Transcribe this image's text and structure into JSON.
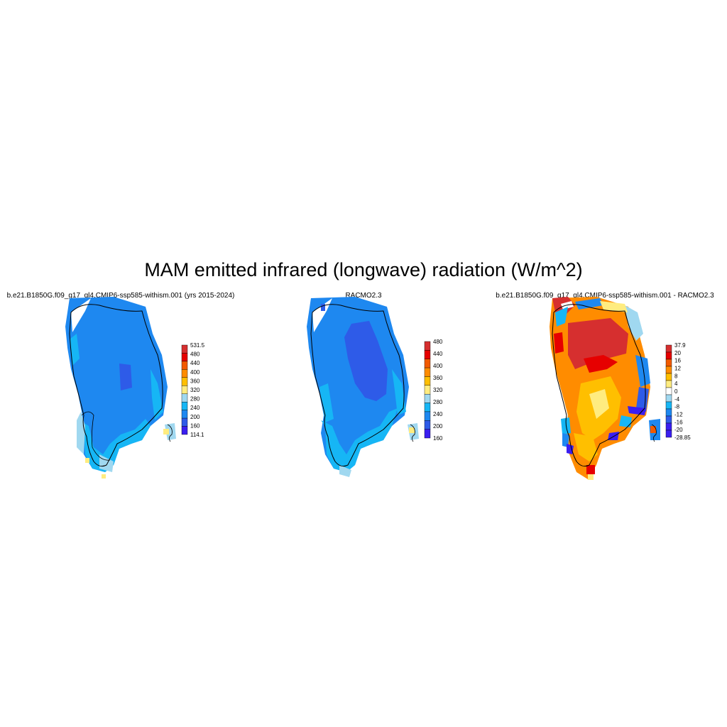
{
  "figure": {
    "title": "MAM emitted infrared (longwave) radiation (W/m^2)"
  },
  "panels": [
    {
      "title": "b.e21.B1850G.f09_g17_gl4.CMIP6-ssp585-withism.001 (yrs 2015-2024)",
      "colorbar": {
        "labels": [
          "531.5",
          "480",
          "440",
          "400",
          "360",
          "320",
          "280",
          "240",
          "200",
          "160",
          "114.1"
        ],
        "colors": [
          "#d62f2f",
          "#e60000",
          "#f25a00",
          "#ff8c00",
          "#ffbf00",
          "#ffec80",
          "#a0d8f0",
          "#16b6f5",
          "#1e88f0",
          "#2e5be8",
          "#3a1ef0"
        ]
      }
    },
    {
      "title": "RACMO2.3",
      "colorbar": {
        "labels": [
          "480",
          "440",
          "400",
          "360",
          "320",
          "280",
          "240",
          "200",
          "160"
        ],
        "colors": [
          "#d62f2f",
          "#e60000",
          "#f25a00",
          "#ff8c00",
          "#ffbf00",
          "#ffec80",
          "#a0d8f0",
          "#16b6f5",
          "#1e88f0",
          "#2e5be8",
          "#3a1ef0"
        ]
      }
    },
    {
      "title": "b.e21.B1850G.f09_g17_gl4.CMIP6-ssp585-withism.001 - RACMO2.3",
      "colorbar": {
        "labels": [
          "37.9",
          "20",
          "16",
          "12",
          "8",
          "4",
          "0",
          "-4",
          "-8",
          "-12",
          "-16",
          "-20",
          "-28.85"
        ],
        "colors": [
          "#d62f2f",
          "#e60000",
          "#f25a00",
          "#ff8c00",
          "#ffbf00",
          "#ffec80",
          "#ffffff",
          "#a0d8f0",
          "#16b6f5",
          "#1e88f0",
          "#2e5be8",
          "#3a1ef0",
          "#3a1ef0"
        ]
      }
    }
  ]
}
